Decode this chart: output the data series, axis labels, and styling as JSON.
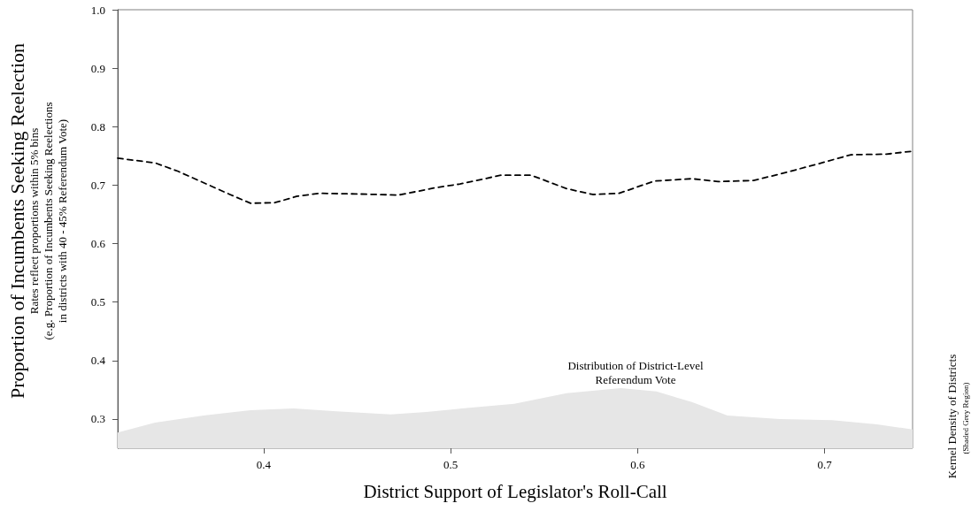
{
  "chart_data": {
    "type": "line",
    "xlabel": "District Support of Legislator's Roll-Call",
    "ylabel": "Proportion of Incumbents Seeking Reelection",
    "y2label": "Kernel Density of Districts",
    "annotations": [
      "Rates reflect proportions within 5% bins\n(e.g. Proportion of Incumbents Seeking Reelections\nin districts with 40 - 45% Referendum Vote)",
      "Distribution of District-Level\nReferendum Vote",
      "(Shaded Grey Region)"
    ],
    "series": [
      {
        "color": "#000000",
        "line_style": "dashed",
        "marker": "none",
        "x": [
          0.322,
          0.342,
          0.354,
          0.368,
          0.382,
          0.393,
          0.406,
          0.418,
          0.43,
          0.449,
          0.472,
          0.477,
          0.491,
          0.505,
          0.527,
          0.543,
          0.562,
          0.576,
          0.59,
          0.609,
          0.629,
          0.643,
          0.662,
          0.676,
          0.695,
          0.714,
          0.733,
          0.747
        ],
        "values": [
          0.746,
          0.738,
          0.724,
          0.704,
          0.684,
          0.669,
          0.67,
          0.681,
          0.686,
          0.685,
          0.683,
          0.686,
          0.695,
          0.702,
          0.717,
          0.717,
          0.694,
          0.684,
          0.686,
          0.707,
          0.711,
          0.706,
          0.708,
          0.719,
          0.735,
          0.752,
          0.753,
          0.758
        ]
      },
      {
        "type": "area",
        "color": "#e6e6e6",
        "x": [
          0.322,
          0.342,
          0.368,
          0.393,
          0.416,
          0.439,
          0.468,
          0.487,
          0.506,
          0.534,
          0.562,
          0.591,
          0.61,
          0.629,
          0.648,
          0.676,
          0.704,
          0.728,
          0.747
        ],
        "values": [
          0.277,
          0.294,
          0.306,
          0.315,
          0.318,
          0.313,
          0.308,
          0.312,
          0.318,
          0.326,
          0.344,
          0.353,
          0.347,
          0.329,
          0.306,
          0.3,
          0.298,
          0.291,
          0.282
        ]
      }
    ],
    "xlim": [
      0.322,
      0.747
    ],
    "xticks": [
      0.4,
      0.5,
      0.6,
      0.7
    ],
    "ylim": [
      0.25,
      1.0
    ],
    "yticks": [
      0.3,
      0.4,
      0.5,
      0.6,
      0.7,
      0.8,
      0.9,
      {
        "value": 1.0,
        "label": "1.0"
      }
    ],
    "grid": false
  }
}
